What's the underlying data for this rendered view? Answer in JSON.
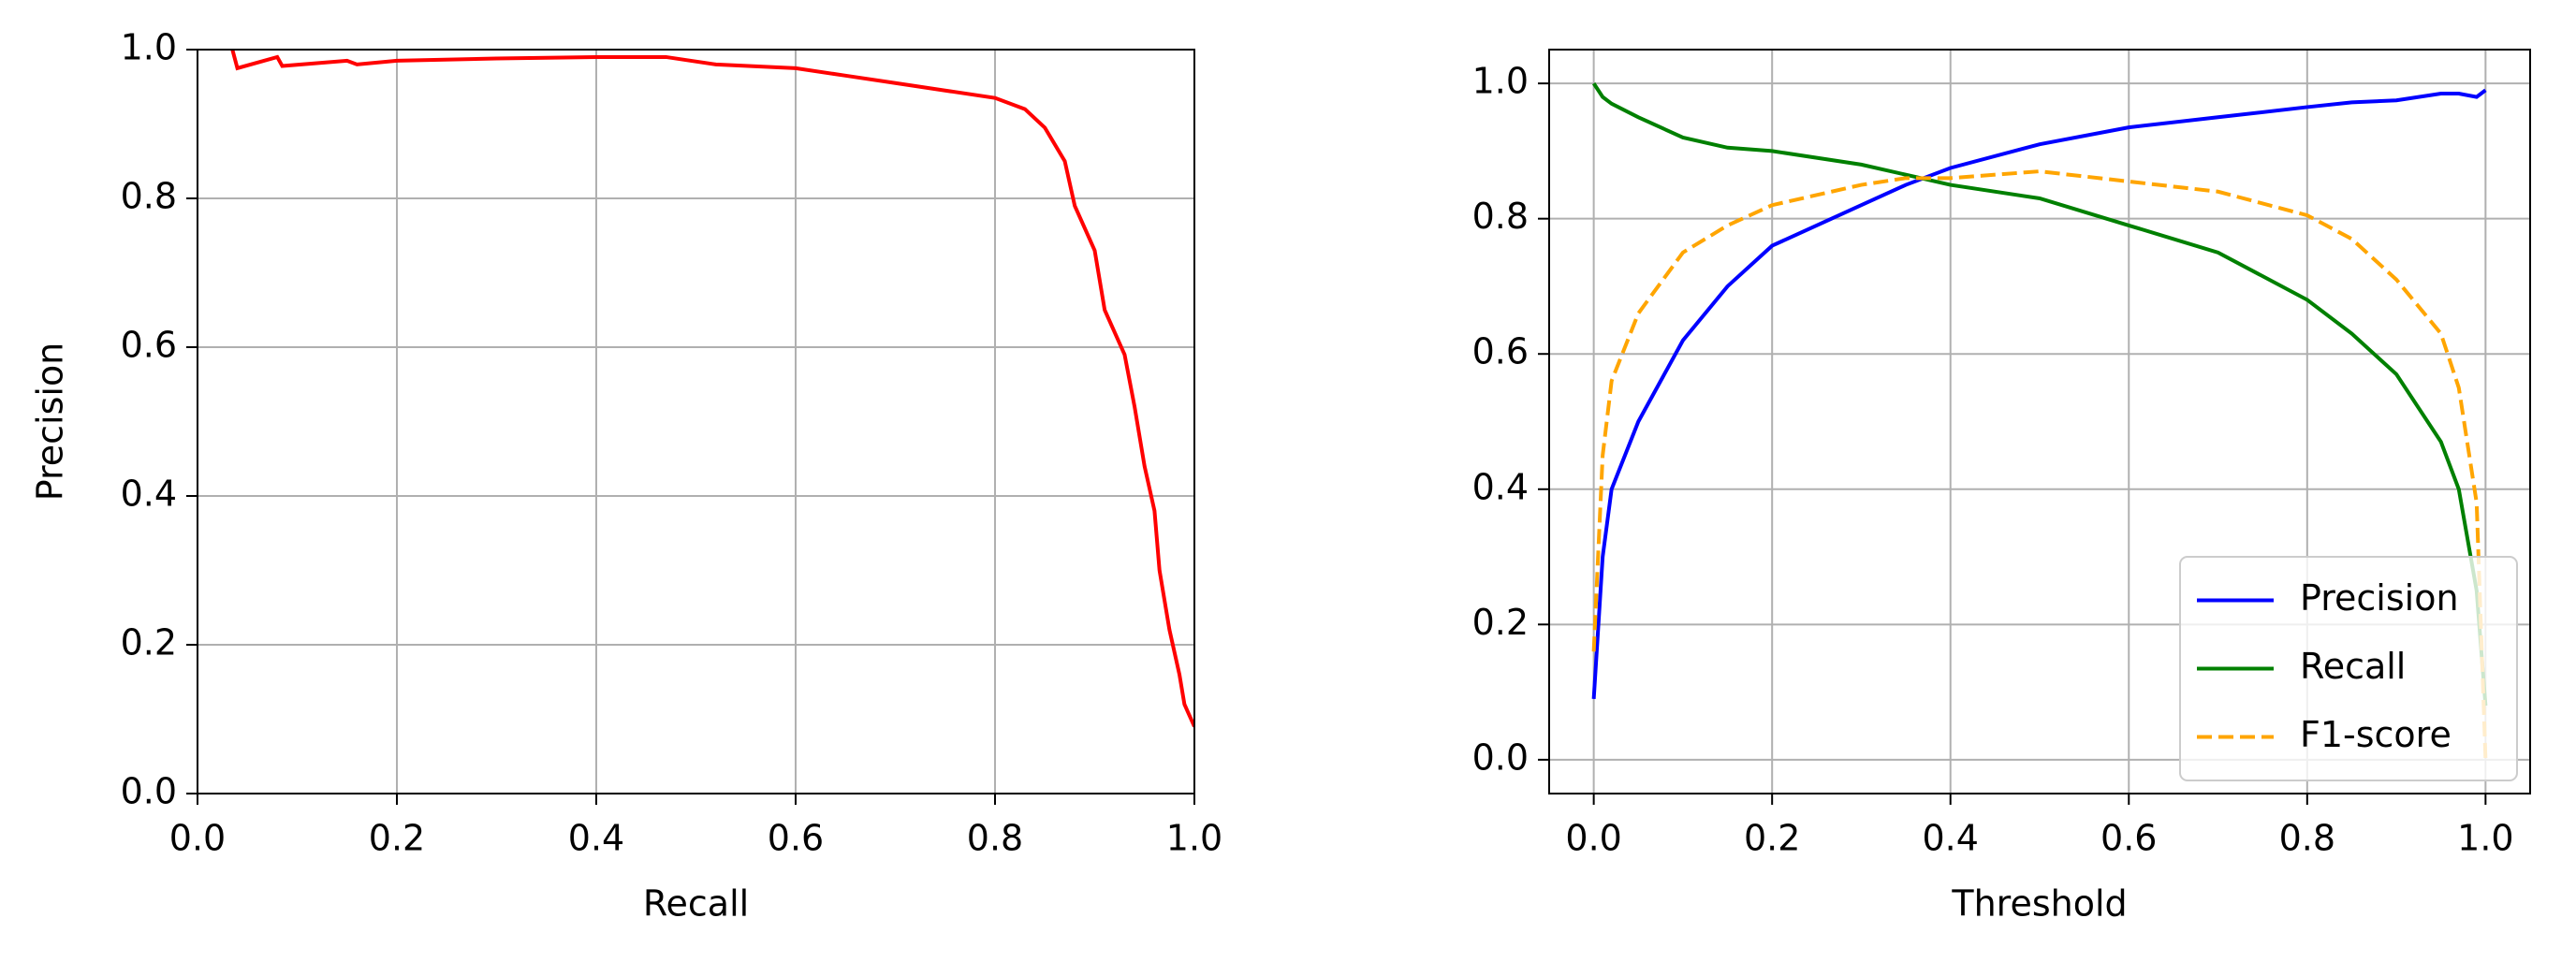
{
  "chart_data": [
    {
      "type": "line",
      "x_label": "Recall",
      "y_label": "Precision",
      "xlim": [
        0,
        1
      ],
      "ylim": [
        0,
        1
      ],
      "xticks": [
        {
          "value": 0,
          "label": "0.0"
        },
        0.2,
        0.4,
        0.6,
        0.8,
        {
          "value": 1,
          "label": "1.0"
        }
      ],
      "yticks": [
        {
          "value": 0,
          "label": "0.0"
        },
        0.2,
        0.4,
        0.6,
        0.8,
        {
          "value": 1,
          "label": "1.0"
        }
      ],
      "grid": true,
      "x": [
        0.035,
        0.04,
        0.08,
        0.085,
        0.15,
        0.16,
        0.2,
        0.3,
        0.4,
        0.47,
        0.52,
        0.6,
        0.65,
        0.7,
        0.75,
        0.8,
        0.83,
        0.85,
        0.87,
        0.88,
        0.9,
        0.91,
        0.93,
        0.94,
        0.95,
        0.96,
        0.965,
        0.975,
        0.985,
        0.99,
        1.0
      ],
      "series": [
        {
          "color": "#ff0000",
          "values": [
            1.0,
            0.975,
            0.99,
            0.978,
            0.985,
            0.98,
            0.985,
            0.988,
            0.99,
            0.99,
            0.98,
            0.975,
            0.965,
            0.955,
            0.945,
            0.935,
            0.92,
            0.895,
            0.85,
            0.79,
            0.73,
            0.65,
            0.59,
            0.52,
            0.44,
            0.38,
            0.3,
            0.22,
            0.16,
            0.12,
            0.09
          ]
        }
      ]
    },
    {
      "type": "line",
      "x_label": "Threshold",
      "xlim": [
        -0.05,
        1.05
      ],
      "ylim": [
        -0.05,
        1.05
      ],
      "xticks": [
        {
          "value": 0,
          "label": "0.0"
        },
        0.2,
        0.4,
        0.6,
        0.8,
        {
          "value": 1,
          "label": "1.0"
        }
      ],
      "yticks": [
        {
          "value": 0,
          "label": "0.0"
        },
        0.2,
        0.4,
        0.6,
        0.8,
        {
          "value": 1,
          "label": "1.0"
        }
      ],
      "grid": true,
      "legend": "lower-right",
      "x": [
        0,
        0.01,
        0.02,
        0.05,
        0.1,
        0.15,
        0.2,
        0.3,
        0.35,
        0.4,
        0.5,
        0.6,
        0.7,
        0.8,
        0.85,
        0.9,
        0.95,
        0.97,
        0.99,
        1.0
      ],
      "series": [
        {
          "name": "Precision",
          "color": "#0000ff",
          "dashed": false,
          "values": [
            0.09,
            0.3,
            0.4,
            0.5,
            0.62,
            0.7,
            0.76,
            0.82,
            0.85,
            0.875,
            0.91,
            0.935,
            0.95,
            0.965,
            0.972,
            0.975,
            0.985,
            0.985,
            0.98,
            0.99
          ]
        },
        {
          "name": "Recall",
          "color": "#008000",
          "dashed": false,
          "values": [
            1.0,
            0.98,
            0.97,
            0.95,
            0.92,
            0.905,
            0.9,
            0.88,
            0.865,
            0.85,
            0.83,
            0.79,
            0.75,
            0.68,
            0.63,
            0.57,
            0.47,
            0.4,
            0.25,
            0.08
          ]
        },
        {
          "name": "F1-score",
          "color": "#ffa500",
          "dashed": true,
          "values": [
            0.16,
            0.45,
            0.56,
            0.66,
            0.75,
            0.79,
            0.82,
            0.85,
            0.86,
            0.86,
            0.87,
            0.855,
            0.84,
            0.805,
            0.77,
            0.71,
            0.63,
            0.55,
            0.38,
            0.0
          ]
        }
      ]
    }
  ]
}
